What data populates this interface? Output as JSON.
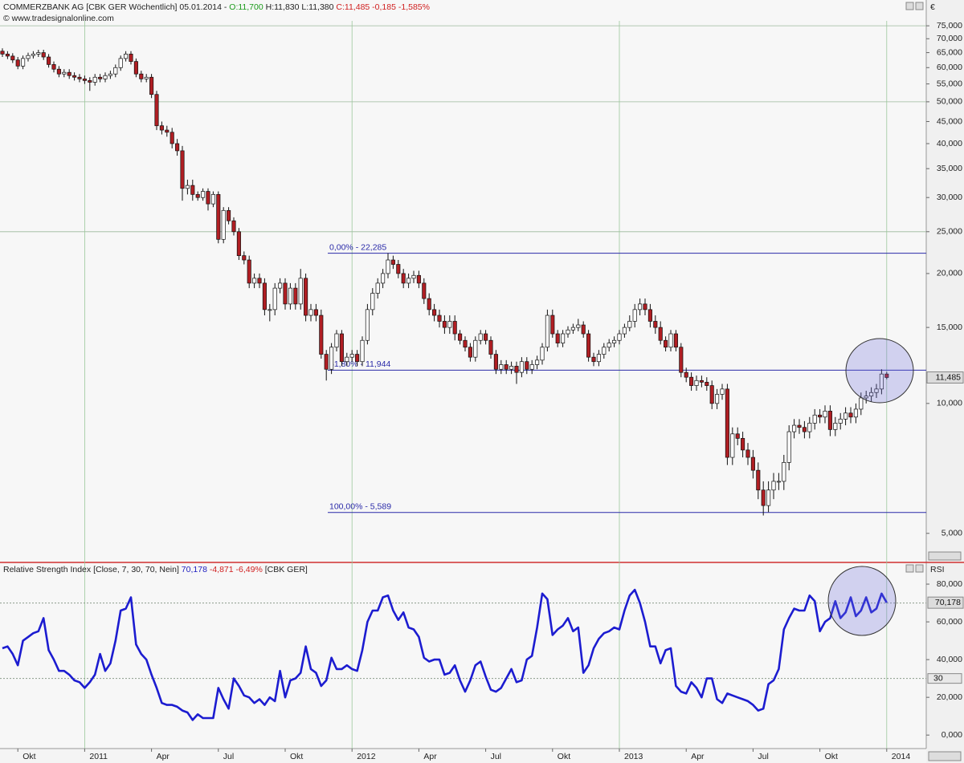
{
  "header": {
    "title": "COMMERZBANK AG [CBK GER  Wöchentlich] 05.01.2014 -",
    "open": "O:11,700",
    "high": "H:11,830",
    "low": "L:11,380",
    "close": "C:11,485",
    "change": "-0,185",
    "change_pct": "-1,585%",
    "source": "© www.tradesignalonline.com",
    "currency": "€"
  },
  "rsi_header": {
    "title": "Relative Strength Index [Close, 7, 30, 70, Nein]",
    "value": "70,178",
    "change": "-4,871 -6,49%",
    "symbol": "[CBK GER]",
    "axis": "RSI"
  },
  "chart_data": [
    {
      "type": "candlestick",
      "log_scale": true,
      "up_color": "#ffffff",
      "down_color": "#b01e23",
      "ylim": [
        4.3,
        77
      ],
      "yticks": [
        {
          "value": 75,
          "label": "75,000"
        },
        {
          "value": 70,
          "label": "70,000"
        },
        {
          "value": 65,
          "label": "65,000"
        },
        {
          "value": 60,
          "label": "60,000"
        },
        {
          "value": 55,
          "label": "55,000"
        },
        {
          "value": 50,
          "label": "50,000"
        },
        {
          "value": 45,
          "label": "45,000"
        },
        {
          "value": 40,
          "label": "40,000"
        },
        {
          "value": 35,
          "label": "35,000"
        },
        {
          "value": 30,
          "label": "30,000"
        },
        {
          "value": 25,
          "label": "25,000"
        },
        {
          "value": 20,
          "label": "20,000"
        },
        {
          "value": 15,
          "label": "15,000"
        },
        {
          "value": 10,
          "label": "10,000"
        },
        {
          "value": 5,
          "label": "5,000"
        }
      ],
      "hgrid": [
        75,
        50,
        25
      ],
      "fib_levels": [
        {
          "value": 22.285,
          "label": "0,00% - 22,285"
        },
        {
          "value": 11.944,
          "label": "61,80% - 11,944"
        },
        {
          "value": 5.589,
          "label": "100,00% - 5,589"
        }
      ],
      "fib_color": "#2a2aa8",
      "last_price": {
        "value": 11.485,
        "label": "11,485"
      },
      "categories": [
        null,
        null,
        null,
        "Okt",
        null,
        null,
        null,
        null,
        null,
        null,
        null,
        null,
        null,
        null,
        null,
        null,
        "2011",
        null,
        null,
        null,
        null,
        null,
        null,
        null,
        null,
        null,
        null,
        null,
        null,
        "Apr",
        null,
        null,
        null,
        null,
        null,
        null,
        null,
        null,
        null,
        null,
        null,
        null,
        "Jul",
        null,
        null,
        null,
        null,
        null,
        null,
        null,
        null,
        null,
        null,
        null,
        null,
        "Okt",
        null,
        null,
        null,
        null,
        null,
        null,
        null,
        null,
        null,
        null,
        null,
        null,
        "2012",
        null,
        null,
        null,
        null,
        null,
        null,
        null,
        null,
        null,
        null,
        null,
        null,
        "Apr",
        null,
        null,
        null,
        null,
        null,
        null,
        null,
        null,
        null,
        null,
        null,
        null,
        "Jul",
        null,
        null,
        null,
        null,
        null,
        null,
        null,
        null,
        null,
        null,
        null,
        null,
        "Okt",
        null,
        null,
        null,
        null,
        null,
        null,
        null,
        null,
        null,
        null,
        null,
        null,
        "2013",
        null,
        null,
        null,
        null,
        null,
        null,
        null,
        null,
        null,
        null,
        null,
        null,
        "Apr",
        null,
        null,
        null,
        null,
        null,
        null,
        null,
        null,
        null,
        null,
        null,
        null,
        "Jul",
        null,
        null,
        null,
        null,
        null,
        null,
        null,
        null,
        null,
        null,
        null,
        null,
        "Okt",
        null,
        null,
        null,
        null,
        null,
        null,
        null,
        null,
        null,
        null,
        null,
        null,
        "2014"
      ],
      "open": [
        65.5,
        64.5,
        63.8,
        62.5,
        60.5,
        63.0,
        64.0,
        64.5,
        65.0,
        63.5,
        61.0,
        59.5,
        58.0,
        58.5,
        57.5,
        57.0,
        56.5,
        56.0,
        55.5,
        57.0,
        56.5,
        57.5,
        58.0,
        60.0,
        63.0,
        64.5,
        62.0,
        58.0,
        56.5,
        57.0,
        52.0,
        44.0,
        43.0,
        42.5,
        40.0,
        38.5,
        31.5,
        32.0,
        30.5,
        30.0,
        31.0,
        29.0,
        30.5,
        24.0,
        28.0,
        26.5,
        25.0,
        22.0,
        21.5,
        19.0,
        19.5,
        19.0,
        16.5,
        16.5,
        18.5,
        19.0,
        17.0,
        18.5,
        17.0,
        19.5,
        16.0,
        16.5,
        16.0,
        13.0,
        12.0,
        13.5,
        14.5,
        12.5,
        12.8,
        13.0,
        12.5,
        14.0,
        16.5,
        18.0,
        19.0,
        20.0,
        21.5,
        21.0,
        20.0,
        19.0,
        19.5,
        19.8,
        19.0,
        17.5,
        16.5,
        16.0,
        15.5,
        15.0,
        15.5,
        14.5,
        14.0,
        13.5,
        12.8,
        14.0,
        14.5,
        14.0,
        13.0,
        12.0,
        12.3,
        12.0,
        12.2,
        11.8,
        12.5,
        12.0,
        12.3,
        12.6,
        13.5,
        16.0,
        14.5,
        13.8,
        14.5,
        14.8,
        15.0,
        15.2,
        14.5,
        12.8,
        12.5,
        13.0,
        13.5,
        13.8,
        14.0,
        14.5,
        15.0,
        15.5,
        16.5,
        17.0,
        16.5,
        15.5,
        15.0,
        14.0,
        13.5,
        14.5,
        13.5,
        11.8,
        11.5,
        11.0,
        11.3,
        11.2,
        11.0,
        10.0,
        10.5,
        10.8,
        7.5,
        8.5,
        8.3,
        7.8,
        7.5,
        7.0,
        6.3,
        5.8,
        6.3,
        6.6,
        6.6,
        7.3,
        8.6,
        8.9,
        8.8,
        8.6,
        9.0,
        9.4,
        9.3,
        9.6,
        8.7,
        9.0,
        9.2,
        9.5,
        9.3,
        9.7,
        10.3,
        10.4,
        10.6,
        10.8,
        11.7
      ],
      "high": [
        66.5,
        65.5,
        64.8,
        63.5,
        64.0,
        65.0,
        65.5,
        66.0,
        66.0,
        64.5,
        62.0,
        60.5,
        59.5,
        59.5,
        58.5,
        58.0,
        57.5,
        57.0,
        58.0,
        58.0,
        58.5,
        59.0,
        61.0,
        64.0,
        65.5,
        65.5,
        63.0,
        59.0,
        58.0,
        58.0,
        53.0,
        45.0,
        44.0,
        43.5,
        41.0,
        39.5,
        33.0,
        33.0,
        31.0,
        31.5,
        31.5,
        31.0,
        31.0,
        28.5,
        28.5,
        27.0,
        25.5,
        22.5,
        22.0,
        20.0,
        20.0,
        19.5,
        17.0,
        19.0,
        19.5,
        19.5,
        19.0,
        19.0,
        20.5,
        20.0,
        17.0,
        17.0,
        16.5,
        13.3,
        13.8,
        14.8,
        14.8,
        13.1,
        13.3,
        13.3,
        14.3,
        17.0,
        18.5,
        19.5,
        20.5,
        22.3,
        22.0,
        21.5,
        20.5,
        20.0,
        20.3,
        20.3,
        19.5,
        18.0,
        17.0,
        16.5,
        16.0,
        16.0,
        16.0,
        14.8,
        14.3,
        13.8,
        14.3,
        14.8,
        14.8,
        14.3,
        13.3,
        12.6,
        12.6,
        12.5,
        12.5,
        12.8,
        12.8,
        12.6,
        12.9,
        13.8,
        16.5,
        16.5,
        14.8,
        14.8,
        15.1,
        15.3,
        15.7,
        15.5,
        14.8,
        13.1,
        13.3,
        13.8,
        14.1,
        14.3,
        14.8,
        15.3,
        16.0,
        17.0,
        17.5,
        17.5,
        17.0,
        16.0,
        15.5,
        14.3,
        14.8,
        14.8,
        13.8,
        12.1,
        11.8,
        11.6,
        11.6,
        11.5,
        11.3,
        10.8,
        11.1,
        11.1,
        8.8,
        8.8,
        8.6,
        8.1,
        7.8,
        7.3,
        6.6,
        6.6,
        6.9,
        6.9,
        7.6,
        8.9,
        9.2,
        9.2,
        9.1,
        9.3,
        9.7,
        9.7,
        9.9,
        9.9,
        9.3,
        9.5,
        9.8,
        9.8,
        10.0,
        10.6,
        10.7,
        10.9,
        11.1,
        12.0,
        11.83
      ],
      "low": [
        63.5,
        62.8,
        61.5,
        59.5,
        59.5,
        62.0,
        63.0,
        63.5,
        62.5,
        60.0,
        58.5,
        57.0,
        57.0,
        56.5,
        56.0,
        55.5,
        55.0,
        53.0,
        54.5,
        55.5,
        55.5,
        56.5,
        57.0,
        59.0,
        62.0,
        61.0,
        57.0,
        55.5,
        55.5,
        51.0,
        43.0,
        42.0,
        41.5,
        39.0,
        37.5,
        29.5,
        30.5,
        29.5,
        29.5,
        29.5,
        28.0,
        28.5,
        23.5,
        23.5,
        26.0,
        24.5,
        21.5,
        21.0,
        18.5,
        18.5,
        18.5,
        16.0,
        15.5,
        16.0,
        18.0,
        16.5,
        16.5,
        16.5,
        16.5,
        15.5,
        15.5,
        15.5,
        12.7,
        11.3,
        11.7,
        13.2,
        12.2,
        12.2,
        12.5,
        12.2,
        12.2,
        13.7,
        16.0,
        17.5,
        18.5,
        19.5,
        20.5,
        19.5,
        18.5,
        18.5,
        19.0,
        18.5,
        17.0,
        16.0,
        15.5,
        15.0,
        14.5,
        14.5,
        14.0,
        13.7,
        13.2,
        12.5,
        12.5,
        13.7,
        13.7,
        12.7,
        11.7,
        11.7,
        11.7,
        11.7,
        11.1,
        11.5,
        11.7,
        11.7,
        12.0,
        12.3,
        13.2,
        14.2,
        13.5,
        13.5,
        14.2,
        14.5,
        14.7,
        14.2,
        12.5,
        12.2,
        12.2,
        12.7,
        13.2,
        13.5,
        13.7,
        14.2,
        14.7,
        15.0,
        16.0,
        16.0,
        15.0,
        14.5,
        13.7,
        13.2,
        13.2,
        13.2,
        11.5,
        11.2,
        10.7,
        10.7,
        10.9,
        10.7,
        9.7,
        9.7,
        10.2,
        7.2,
        7.2,
        8.0,
        7.5,
        7.2,
        6.7,
        6.0,
        5.5,
        5.6,
        6.0,
        6.3,
        6.3,
        7.0,
        8.3,
        8.5,
        8.3,
        8.3,
        8.7,
        9.0,
        9.0,
        8.4,
        8.4,
        8.7,
        8.9,
        9.0,
        9.0,
        9.4,
        10.0,
        10.1,
        10.3,
        10.5,
        11.38
      ],
      "close": [
        64.5,
        63.8,
        62.5,
        60.5,
        63.0,
        64.0,
        64.5,
        65.0,
        63.5,
        61.0,
        59.5,
        58.0,
        58.5,
        57.5,
        57.0,
        56.5,
        56.0,
        55.5,
        57.0,
        56.5,
        57.5,
        58.0,
        60.0,
        63.0,
        64.5,
        62.0,
        58.0,
        56.5,
        57.0,
        52.0,
        44.0,
        43.0,
        42.5,
        40.0,
        38.5,
        31.5,
        32.0,
        30.5,
        30.0,
        31.0,
        29.0,
        30.5,
        24.0,
        28.0,
        26.5,
        25.0,
        22.0,
        21.5,
        19.0,
        19.5,
        19.0,
        16.5,
        16.5,
        18.5,
        19.0,
        17.0,
        18.5,
        17.0,
        19.5,
        16.0,
        16.5,
        16.0,
        13.0,
        12.0,
        13.5,
        14.5,
        12.5,
        12.8,
        13.0,
        12.5,
        14.0,
        16.5,
        18.0,
        19.0,
        20.0,
        21.5,
        21.0,
        20.0,
        19.0,
        19.5,
        19.8,
        19.0,
        17.5,
        16.5,
        16.0,
        15.5,
        15.0,
        15.5,
        14.5,
        14.0,
        13.5,
        12.8,
        14.0,
        14.5,
        14.0,
        13.0,
        12.0,
        12.3,
        12.0,
        12.2,
        11.8,
        12.5,
        12.0,
        12.3,
        12.6,
        13.5,
        16.0,
        14.5,
        13.8,
        14.5,
        14.8,
        15.0,
        15.2,
        14.5,
        12.8,
        12.5,
        13.0,
        13.5,
        13.8,
        14.0,
        14.5,
        15.0,
        15.5,
        16.5,
        17.0,
        16.5,
        15.5,
        15.0,
        14.0,
        13.5,
        14.5,
        13.5,
        11.8,
        11.5,
        11.0,
        11.3,
        11.2,
        11.0,
        10.0,
        10.5,
        10.8,
        7.5,
        8.5,
        8.3,
        7.8,
        7.5,
        7.0,
        6.3,
        5.8,
        6.3,
        6.6,
        6.6,
        7.3,
        8.6,
        8.9,
        8.8,
        8.6,
        9.0,
        9.4,
        9.3,
        9.6,
        8.7,
        9.0,
        9.2,
        9.5,
        9.3,
        9.7,
        10.3,
        10.4,
        10.6,
        10.8,
        11.7,
        11.485
      ]
    },
    {
      "type": "line",
      "color": "#1c1cd0",
      "ylim": [
        -8,
        86.4
      ],
      "yticks": [
        {
          "value": 80,
          "label": "80,000"
        },
        {
          "value": 60,
          "label": "60,000"
        },
        {
          "value": 40,
          "label": "40,000"
        },
        {
          "value": 20,
          "label": "20,000"
        },
        {
          "value": 0,
          "label": "0,000"
        }
      ],
      "levels": [
        70,
        30
      ],
      "last_value": {
        "value": 70.178,
        "label": "70,178"
      },
      "values": [
        46,
        47,
        43,
        37,
        50,
        52,
        54,
        55,
        62,
        45,
        40,
        34,
        34,
        32,
        29,
        28,
        25,
        28,
        32,
        43,
        34,
        38,
        50,
        66,
        67,
        73,
        48,
        43,
        40,
        32,
        25,
        17,
        16,
        16,
        15,
        13,
        12,
        8,
        11,
        9,
        9,
        9,
        25,
        19,
        14,
        30,
        26,
        21,
        20,
        17,
        19,
        16,
        20,
        18,
        34,
        20,
        29,
        30,
        33,
        47,
        35,
        33,
        26,
        29,
        41,
        35,
        35,
        37,
        35,
        34,
        45,
        60,
        66,
        66,
        73,
        74,
        66,
        61,
        65,
        57,
        56,
        52,
        41,
        39,
        40,
        40,
        32,
        33,
        37,
        29,
        23,
        29,
        37,
        39,
        31,
        24,
        23,
        25,
        30,
        35,
        28,
        29,
        40,
        42,
        57,
        75,
        72,
        53,
        56,
        58,
        62,
        55,
        57,
        33,
        37,
        46,
        51,
        54,
        55,
        57,
        56,
        66,
        74,
        77,
        70,
        60,
        47,
        47,
        38,
        45,
        46,
        26,
        23,
        22,
        28,
        25,
        20,
        30,
        30,
        19,
        17,
        22,
        21,
        20,
        19,
        18,
        16,
        13,
        14,
        27,
        29,
        35,
        56,
        62,
        67,
        66,
        66,
        74,
        71,
        55,
        60,
        62,
        71,
        62,
        65,
        73,
        63,
        66,
        73,
        65,
        67,
        75,
        70.178
      ]
    }
  ]
}
